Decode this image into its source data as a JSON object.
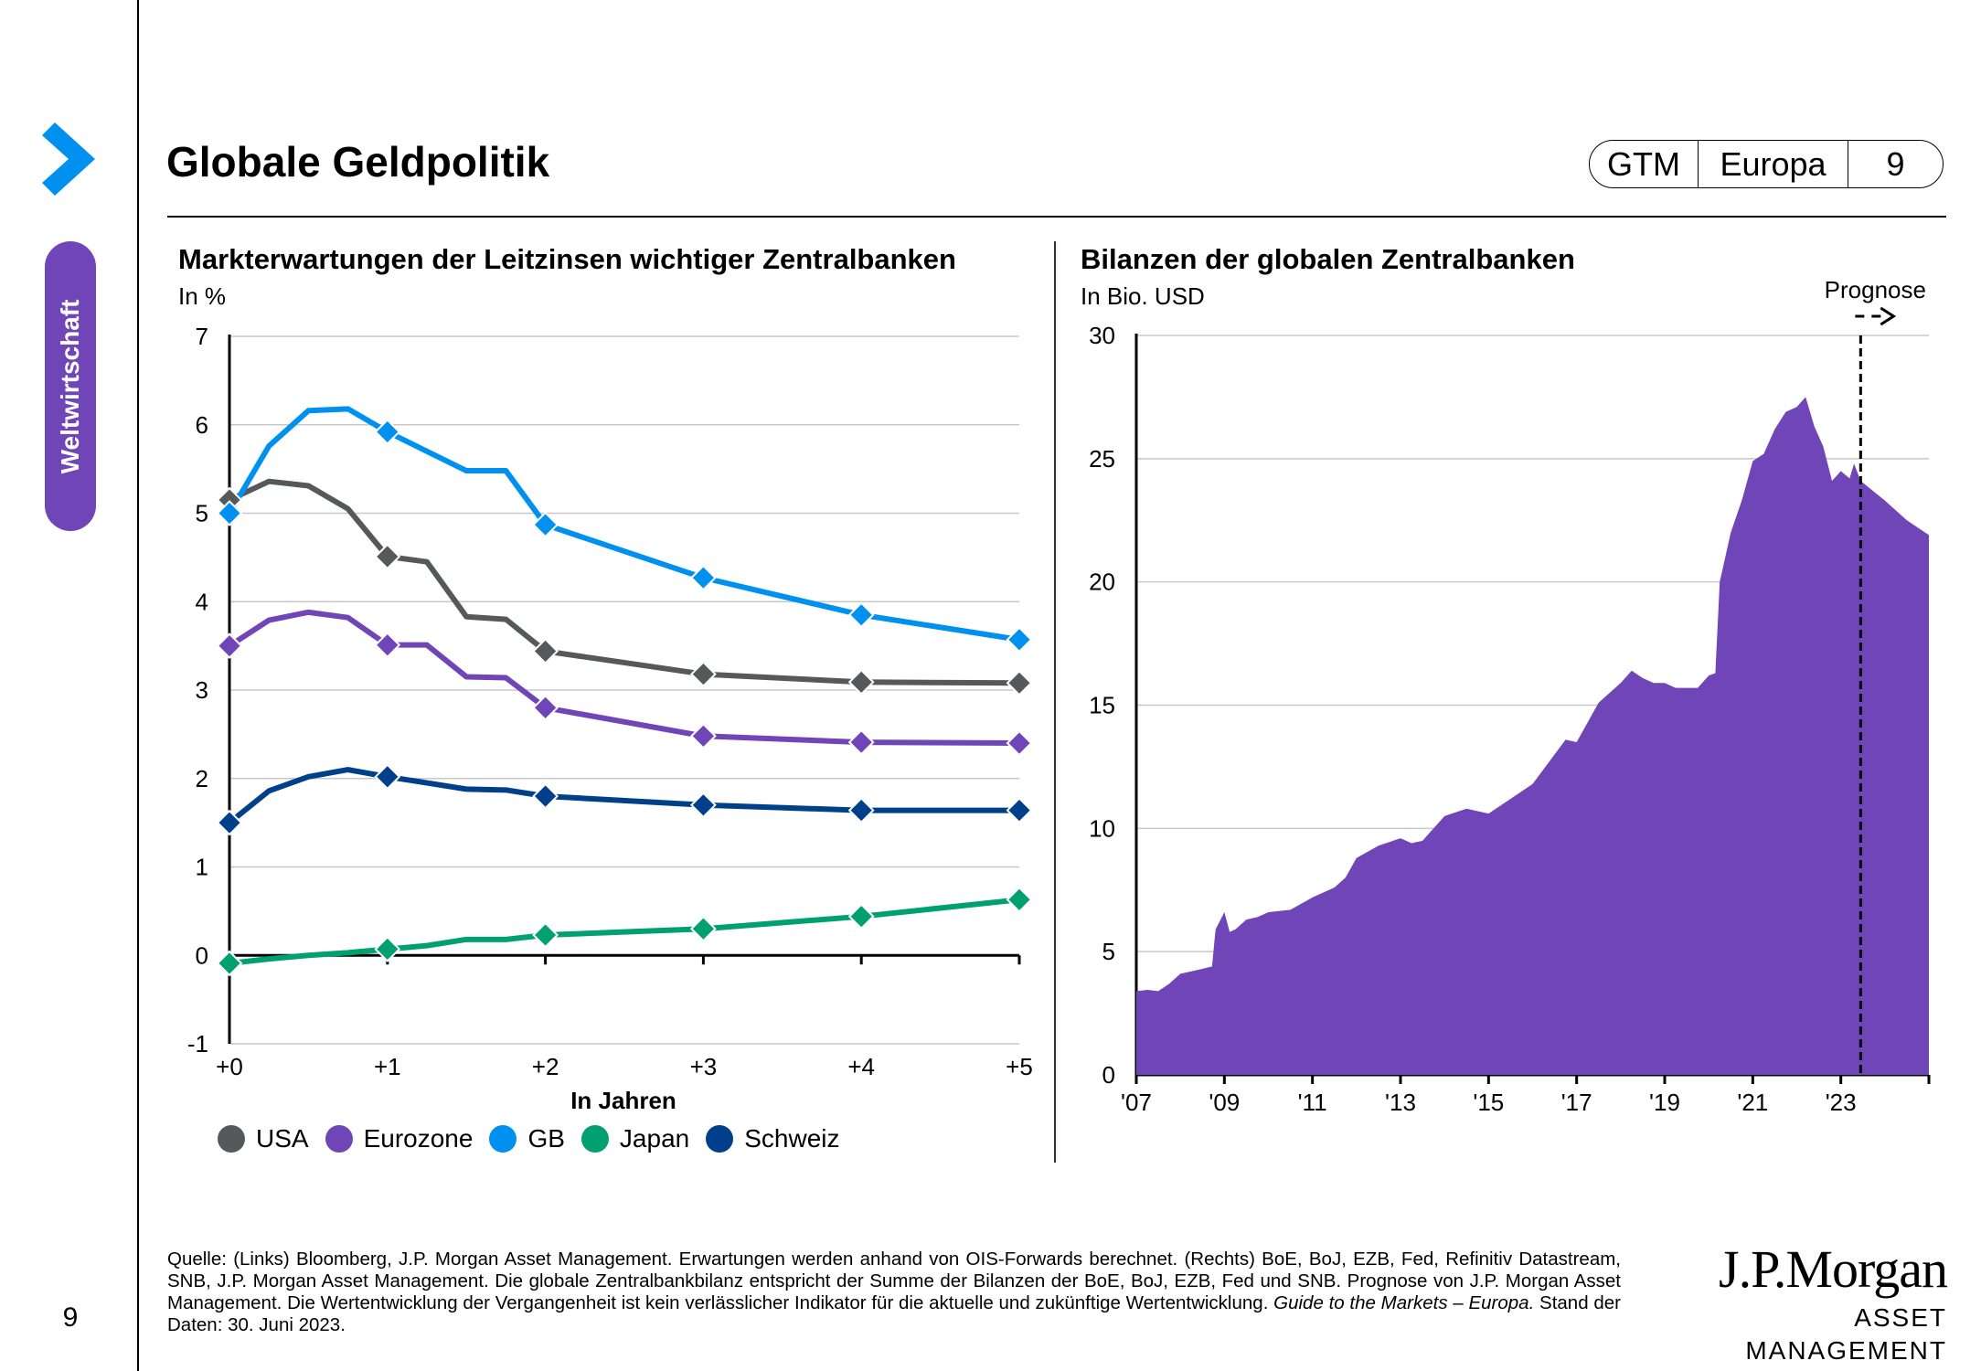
{
  "header": {
    "title": "Globale Geldpolitik",
    "badge": {
      "series": "GTM",
      "region": "Europa",
      "page": "9"
    },
    "section_tab": "Weltwirtschaft"
  },
  "colors": {
    "accent_blue": "#0091f0",
    "purple": "#6f45b8",
    "usa": "#55595c",
    "eurozone": "#6f45b8",
    "gb": "#0091f0",
    "japan": "#00a070",
    "schweiz": "#003f8a"
  },
  "chart_data": [
    {
      "type": "line",
      "title": "Markterwartungen der Leitzinsen wichtiger Zentralbanken",
      "ylabel": "In %",
      "xlabel": "In Jahren",
      "ylim": [
        -1,
        7
      ],
      "yticks": [
        "7",
        "6",
        "5",
        "4",
        "3",
        "2",
        "1",
        "0",
        "-1"
      ],
      "ytick_values": [
        7,
        6,
        5,
        4,
        3,
        2,
        1,
        0,
        -1
      ],
      "xlim": [
        0,
        5
      ],
      "xticks": [
        "+0",
        "+1",
        "+2",
        "+3",
        "+4",
        "+5"
      ],
      "xtick_values": [
        0,
        1,
        2,
        3,
        4,
        5
      ],
      "grid": true,
      "legend_position": "bottom-left",
      "x": [
        0,
        0.25,
        0.5,
        0.75,
        1,
        1.25,
        1.5,
        1.75,
        2,
        3,
        4,
        5
      ],
      "marker_x": [
        0,
        1,
        2,
        3,
        4,
        5
      ],
      "series": [
        {
          "name": "USA",
          "color": "#55595c",
          "values": [
            5.15,
            5.36,
            5.31,
            5.05,
            4.51,
            4.45,
            3.83,
            3.8,
            3.44,
            3.18,
            3.09,
            3.08
          ]
        },
        {
          "name": "Eurozone",
          "color": "#6f45b8",
          "values": [
            3.5,
            3.79,
            3.88,
            3.82,
            3.51,
            3.51,
            3.15,
            3.14,
            2.8,
            2.48,
            2.41,
            2.4
          ]
        },
        {
          "name": "GB",
          "color": "#0091f0",
          "values": [
            5.0,
            5.76,
            6.16,
            6.18,
            5.92,
            5.7,
            5.48,
            5.48,
            4.87,
            4.27,
            3.85,
            3.57
          ]
        },
        {
          "name": "Japan",
          "color": "#00a070",
          "values": [
            -0.09,
            -0.04,
            0.0,
            0.03,
            0.07,
            0.11,
            0.18,
            0.18,
            0.23,
            0.3,
            0.44,
            0.63
          ]
        },
        {
          "name": "Schweiz",
          "color": "#003f8a",
          "values": [
            1.5,
            1.86,
            2.02,
            2.1,
            2.02,
            1.95,
            1.88,
            1.87,
            1.8,
            1.7,
            1.64,
            1.64
          ]
        }
      ]
    },
    {
      "type": "area",
      "title": "Bilanzen der globalen Zentralbanken",
      "ylabel": "In Bio. USD",
      "xlabel": "",
      "ylim": [
        0,
        30
      ],
      "yticks": [
        "30",
        "25",
        "20",
        "15",
        "10",
        "5",
        "0"
      ],
      "ytick_values": [
        30,
        25,
        20,
        15,
        10,
        5,
        0
      ],
      "xlim": [
        2007,
        2025
      ],
      "xticks": [
        "'07",
        "'09",
        "'11",
        "'13",
        "'15",
        "'17",
        "'19",
        "'21",
        "'23"
      ],
      "xtick_values": [
        2007,
        2009,
        2011,
        2013,
        2015,
        2017,
        2019,
        2021,
        2023
      ],
      "grid": true,
      "color": "#6f45b8",
      "forecast_start": 2023.45,
      "forecast_label": "Prognose",
      "series": [
        {
          "name": "Globale Zentralbankbilanz",
          "x": [
            2007.0,
            2007.25,
            2007.5,
            2007.75,
            2008.0,
            2008.25,
            2008.5,
            2008.72,
            2008.8,
            2009.0,
            2009.12,
            2009.25,
            2009.5,
            2009.75,
            2010.0,
            2010.5,
            2011.0,
            2011.5,
            2011.75,
            2012.0,
            2012.5,
            2013.0,
            2013.25,
            2013.5,
            2014.0,
            2014.5,
            2015.0,
            2015.5,
            2016.0,
            2016.5,
            2016.75,
            2017.0,
            2017.5,
            2017.75,
            2018.0,
            2018.25,
            2018.5,
            2018.75,
            2019.0,
            2019.25,
            2019.5,
            2019.75,
            2020.0,
            2020.15,
            2020.25,
            2020.5,
            2020.75,
            2021.0,
            2021.25,
            2021.5,
            2021.75,
            2022.0,
            2022.2,
            2022.4,
            2022.6,
            2022.8,
            2023.0,
            2023.2,
            2023.3,
            2023.45,
            2024.0,
            2024.5,
            2025.0
          ],
          "values": [
            3.4,
            3.45,
            3.4,
            3.7,
            4.1,
            4.2,
            4.3,
            4.4,
            5.9,
            6.6,
            5.8,
            5.9,
            6.3,
            6.4,
            6.6,
            6.7,
            7.2,
            7.6,
            8.0,
            8.8,
            9.3,
            9.6,
            9.4,
            9.5,
            10.5,
            10.8,
            10.6,
            11.2,
            11.8,
            13.0,
            13.6,
            13.5,
            15.1,
            15.5,
            15.9,
            16.4,
            16.1,
            15.9,
            15.9,
            15.7,
            15.7,
            15.7,
            16.2,
            16.3,
            20.0,
            22.0,
            23.3,
            24.9,
            25.2,
            26.2,
            26.9,
            27.1,
            27.5,
            26.3,
            25.5,
            24.1,
            24.5,
            24.2,
            24.8,
            24.1,
            23.3,
            22.5,
            21.9
          ]
        }
      ]
    }
  ],
  "legend": [
    {
      "label": "USA",
      "color": "#55595c"
    },
    {
      "label": "Eurozone",
      "color": "#6f45b8"
    },
    {
      "label": "GB",
      "color": "#0091f0"
    },
    {
      "label": "Japan",
      "color": "#00a070"
    },
    {
      "label": "Schweiz",
      "color": "#003f8a"
    }
  ],
  "footer": {
    "source_text": "Quelle: (Links) Bloomberg, J.P. Morgan Asset Management. Erwartungen werden anhand von OIS-Forwards berechnet. (Rechts) BoE, BoJ, EZB, Fed, Refinitiv Datastream, SNB, J.P. Morgan Asset Management. Die globale Zentralbankbilanz entspricht der Summe der Bilanzen der BoE, BoJ, EZB, Fed und SNB. Prognose von J.P. Morgan Asset Management. Die Wertentwicklung der Vergangenheit ist kein verlässlicher Indikator für die aktuelle und zukünftige Wertentwicklung.",
    "guide_italic": "Guide to the Markets – Europa.",
    "date_text": "Stand der Daten: 30. Juni 2023.",
    "page_number": "9"
  },
  "logo": {
    "main": "J.P.Morgan",
    "sub": "ASSET MANAGEMENT"
  }
}
